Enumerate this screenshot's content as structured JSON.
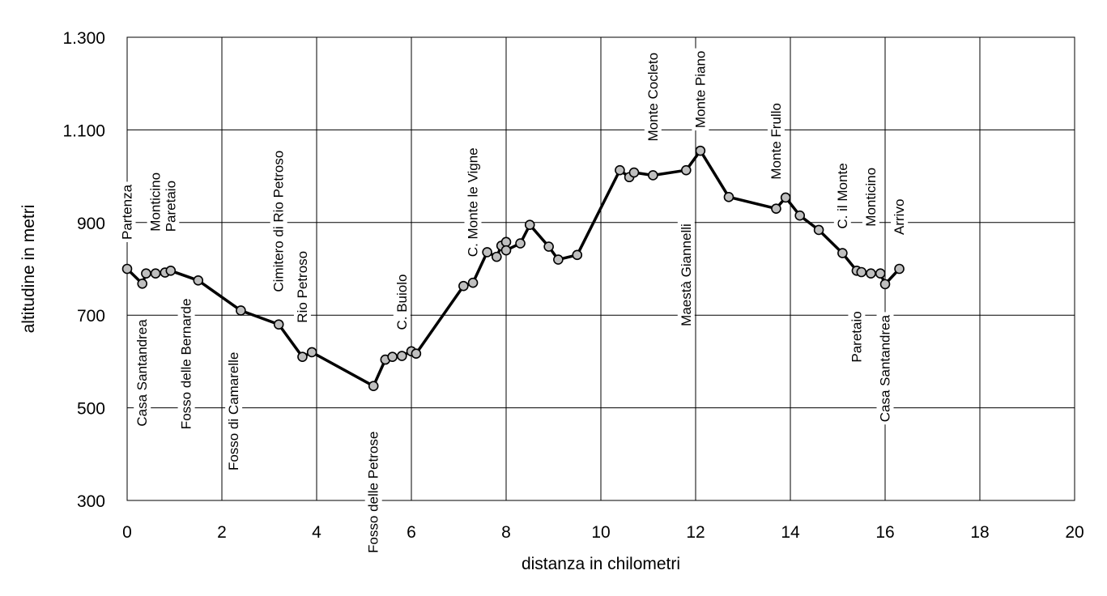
{
  "chart_data": {
    "type": "line",
    "xlabel": "distanza in chilometri",
    "ylabel": "altitudine  in metri",
    "xlim": [
      0,
      20
    ],
    "ylim": [
      300,
      1300
    ],
    "x_ticks": [
      "0",
      "2",
      "4",
      "6",
      "8",
      "10",
      "12",
      "14",
      "16",
      "18",
      "20"
    ],
    "y_ticks": [
      "300",
      "500",
      "700",
      "900",
      "1.100",
      "1.300"
    ],
    "grid": true,
    "series": [
      {
        "color": "#000000",
        "marker_color": "#bfbfbf",
        "points": [
          {
            "x": 0.0,
            "y": 800
          },
          {
            "x": 0.32,
            "y": 768
          },
          {
            "x": 0.4,
            "y": 790
          },
          {
            "x": 0.6,
            "y": 790
          },
          {
            "x": 0.8,
            "y": 792
          },
          {
            "x": 0.92,
            "y": 796
          },
          {
            "x": 1.5,
            "y": 775
          },
          {
            "x": 2.4,
            "y": 710
          },
          {
            "x": 3.2,
            "y": 680
          },
          {
            "x": 3.7,
            "y": 610
          },
          {
            "x": 3.9,
            "y": 620
          },
          {
            "x": 5.2,
            "y": 547
          },
          {
            "x": 5.45,
            "y": 604
          },
          {
            "x": 5.6,
            "y": 610
          },
          {
            "x": 5.8,
            "y": 612
          },
          {
            "x": 6.0,
            "y": 622
          },
          {
            "x": 6.1,
            "y": 617
          },
          {
            "x": 7.1,
            "y": 763
          },
          {
            "x": 7.3,
            "y": 770
          },
          {
            "x": 7.6,
            "y": 836
          },
          {
            "x": 7.8,
            "y": 826
          },
          {
            "x": 7.9,
            "y": 850
          },
          {
            "x": 8.0,
            "y": 858
          },
          {
            "x": 8.0,
            "y": 840
          },
          {
            "x": 8.3,
            "y": 855
          },
          {
            "x": 8.5,
            "y": 895
          },
          {
            "x": 8.9,
            "y": 848
          },
          {
            "x": 9.1,
            "y": 820
          },
          {
            "x": 9.5,
            "y": 830
          },
          {
            "x": 10.4,
            "y": 1013
          },
          {
            "x": 10.6,
            "y": 998
          },
          {
            "x": 10.7,
            "y": 1008
          },
          {
            "x": 11.1,
            "y": 1002
          },
          {
            "x": 11.8,
            "y": 1013
          },
          {
            "x": 12.1,
            "y": 1055
          },
          {
            "x": 12.7,
            "y": 955
          },
          {
            "x": 13.7,
            "y": 930
          },
          {
            "x": 13.9,
            "y": 954
          },
          {
            "x": 14.2,
            "y": 915
          },
          {
            "x": 14.6,
            "y": 884
          },
          {
            "x": 15.1,
            "y": 834
          },
          {
            "x": 15.4,
            "y": 796
          },
          {
            "x": 15.5,
            "y": 793
          },
          {
            "x": 15.7,
            "y": 790
          },
          {
            "x": 15.9,
            "y": 790
          },
          {
            "x": 16.0,
            "y": 767
          },
          {
            "x": 16.3,
            "y": 800
          }
        ]
      }
    ],
    "annotations": [
      {
        "text": "Partenza",
        "x": 0.0,
        "y": 800
      },
      {
        "text": "Casa Santandrea",
        "x": 0.32,
        "y": 768
      },
      {
        "text": "Monticino",
        "x": 0.6,
        "y": 790
      },
      {
        "text": "Paretaio",
        "x": 0.92,
        "y": 796
      },
      {
        "text": "Fosso delle Bernarde",
        "x": 1.25,
        "y": 785
      },
      {
        "text": "Fosso di Camarelle",
        "x": 2.25,
        "y": 715
      },
      {
        "text": "Cimitero di Rio Petroso",
        "x": 3.2,
        "y": 680
      },
      {
        "text": "Rio Petroso",
        "x": 3.7,
        "y": 610
      },
      {
        "text": "Fosso delle Petrose",
        "x": 5.2,
        "y": 547
      },
      {
        "text": "C. Buiolo",
        "x": 5.8,
        "y": 612
      },
      {
        "text": "C. Monte le Vigne",
        "x": 7.3,
        "y": 770
      },
      {
        "text": "Monte Cocleto",
        "x": 11.1,
        "y": 1002
      },
      {
        "text": "Maestà Giannelli",
        "x": 11.8,
        "y": 1013
      },
      {
        "text": "Monte Piano",
        "x": 12.1,
        "y": 1055
      },
      {
        "text": "Monte Frullo",
        "x": 13.7,
        "y": 930
      },
      {
        "text": "C. il Monte",
        "x": 15.1,
        "y": 834
      },
      {
        "text": "Paretaio",
        "x": 15.4,
        "y": 796
      },
      {
        "text": "Monticino",
        "x": 15.7,
        "y": 790
      },
      {
        "text": "Casa Santandrea",
        "x": 16.0,
        "y": 767
      },
      {
        "text": "Arrivo",
        "x": 16.3,
        "y": 800
      }
    ]
  }
}
